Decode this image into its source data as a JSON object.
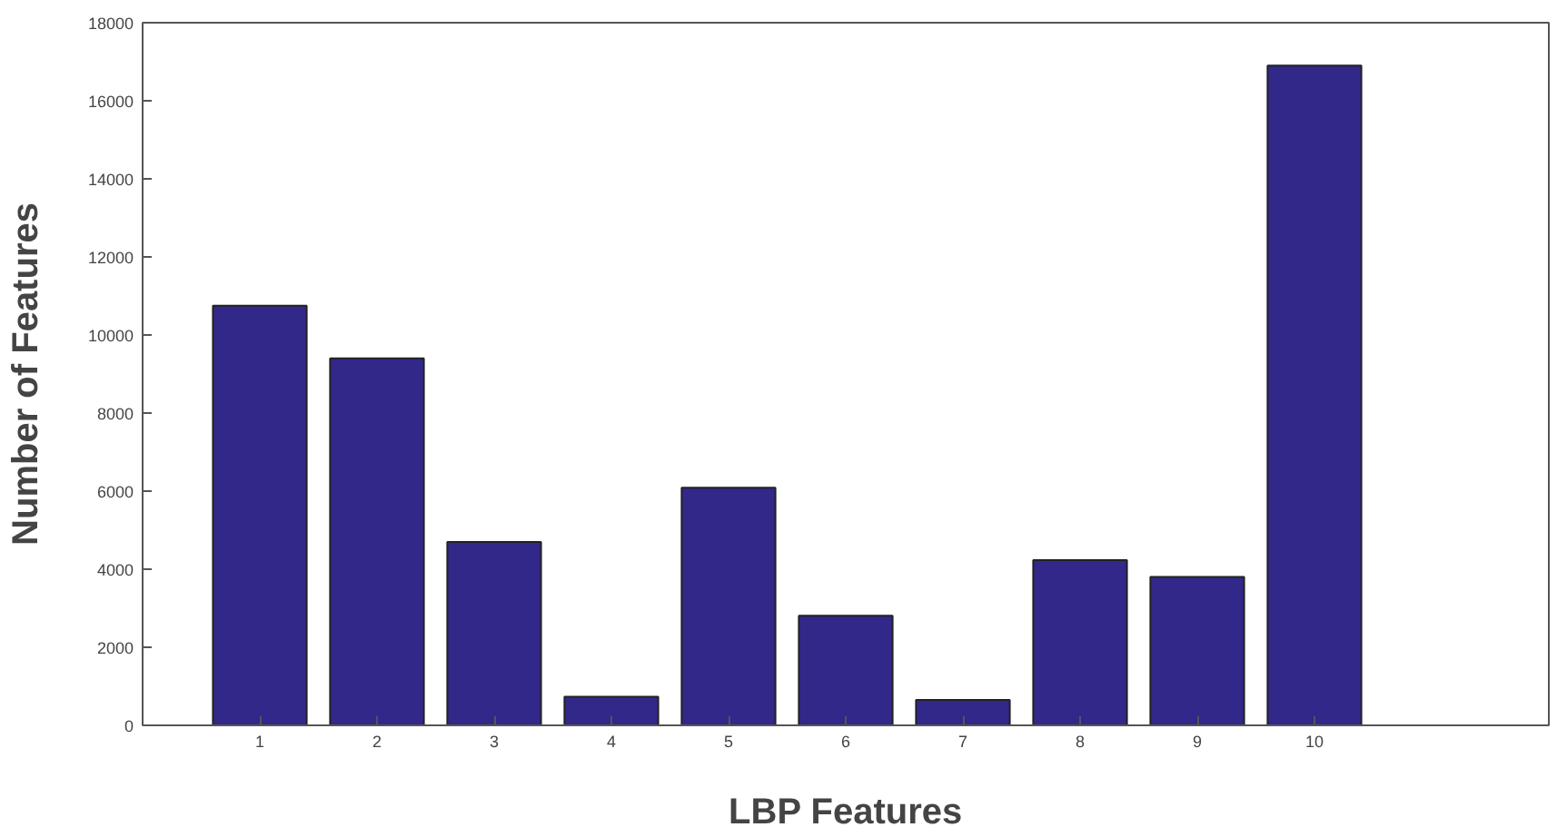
{
  "chart_data": {
    "type": "bar",
    "xlabel": "LBP Features",
    "ylabel": "Number of Features",
    "x": [
      1,
      2,
      3,
      4,
      5,
      6,
      7,
      8,
      9,
      10
    ],
    "values": [
      10750,
      9400,
      4700,
      730,
      6090,
      2810,
      650,
      4230,
      3800,
      16900
    ],
    "color": "#32288a",
    "xlim": [
      0,
      12
    ],
    "xticks": [
      1,
      2,
      3,
      4,
      5,
      6,
      7,
      8,
      9,
      10
    ],
    "ylim": [
      0,
      18000
    ],
    "yticks": [
      0,
      2000,
      4000,
      6000,
      8000,
      10000,
      12000,
      14000,
      16000,
      18000
    ],
    "grid": false
  }
}
